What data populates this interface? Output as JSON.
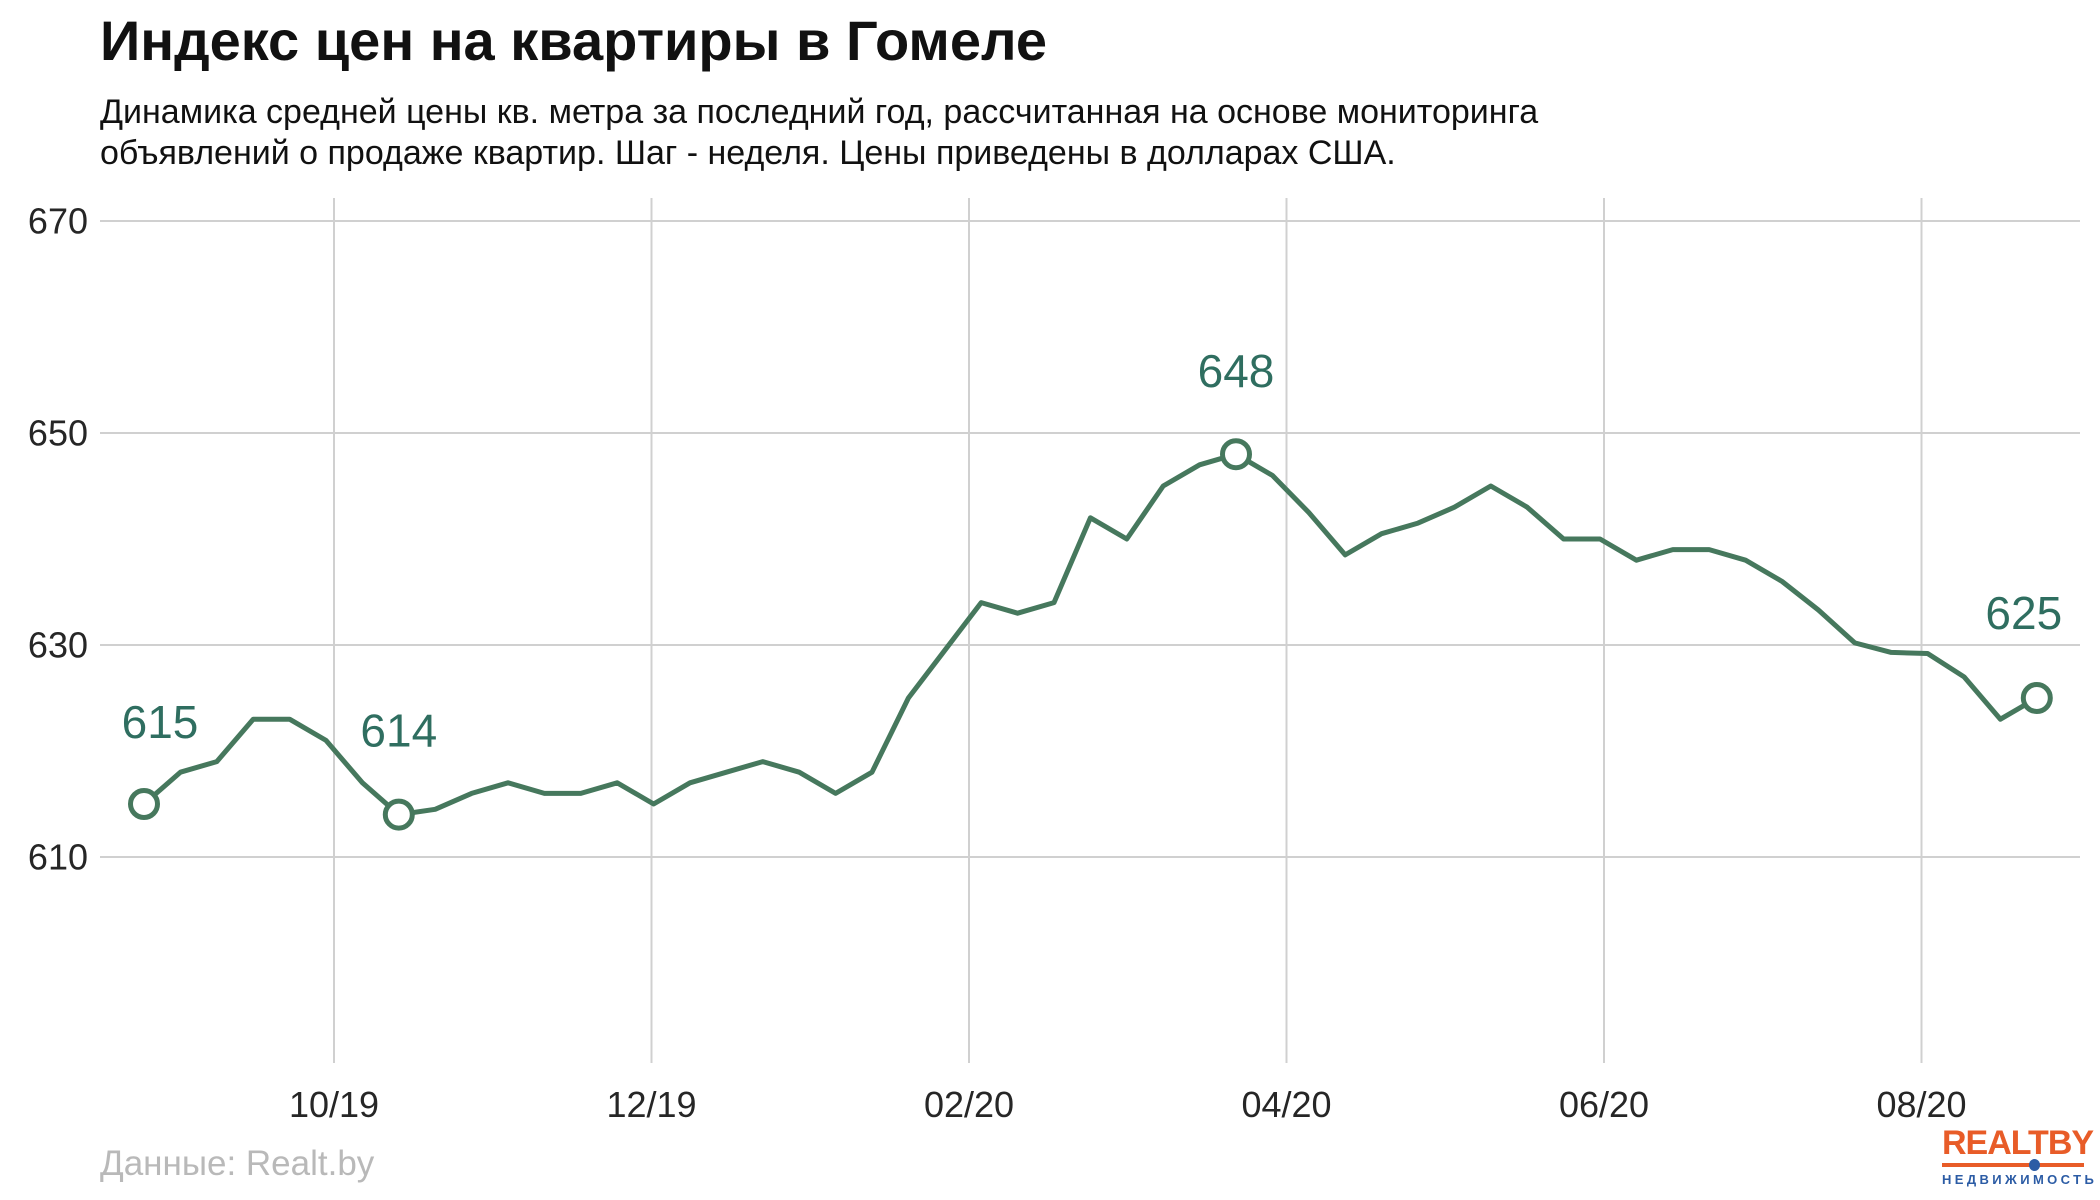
{
  "header": {
    "title": "Индекс цен на квартиры в Гомеле",
    "subtitle": "Динамика средней цены кв. метра за последний год, рассчитанная на основе мониторинга объявлений о продаже квартир. Шаг - неделя. Цены приведены в долларах США."
  },
  "footer": {
    "source": "Данные: Realt.by"
  },
  "logo": {
    "word1": "REALT",
    "word2": "BY",
    "tagline": "НЕДВИЖИМОСТЬ",
    "orange": "#E85C28",
    "blue": "#2C5CA5"
  },
  "chart_data": {
    "type": "line",
    "title": "Индекс цен на квартиры в Гомеле",
    "step": "неделя",
    "currency": "доллары США",
    "x_tick_labels": [
      "10/19",
      "12/19",
      "02/20",
      "04/20",
      "06/20",
      "08/20"
    ],
    "y_tick_labels": [
      "670",
      "650",
      "630",
      "610"
    ],
    "y_tick_values": [
      670,
      650,
      630,
      610
    ],
    "ylim": [
      592,
      672
    ],
    "grid": true,
    "legend": false,
    "line_color": "#46785D",
    "label_color": "#2F6E60",
    "grid_color": "#d0d0d0",
    "tick_text_color": "#262626",
    "values": [
      615,
      618,
      619,
      623,
      623,
      621,
      617,
      614,
      614.5,
      616,
      617,
      616,
      616,
      617,
      615,
      617,
      618,
      619,
      618,
      616,
      618,
      625,
      629.5,
      634,
      633,
      634,
      642,
      640,
      645,
      647,
      648,
      646,
      642.5,
      638.5,
      640.5,
      641.5,
      643,
      645,
      643,
      640,
      640,
      638,
      639,
      639,
      638,
      636,
      633.3,
      630.2,
      629.3,
      629.2,
      627,
      623,
      625
    ],
    "annotated_points": [
      {
        "index": 0,
        "label": "615"
      },
      {
        "index": 7,
        "label": "614"
      },
      {
        "index": 30,
        "label": "648"
      },
      {
        "index": 52,
        "label": "625"
      }
    ]
  }
}
